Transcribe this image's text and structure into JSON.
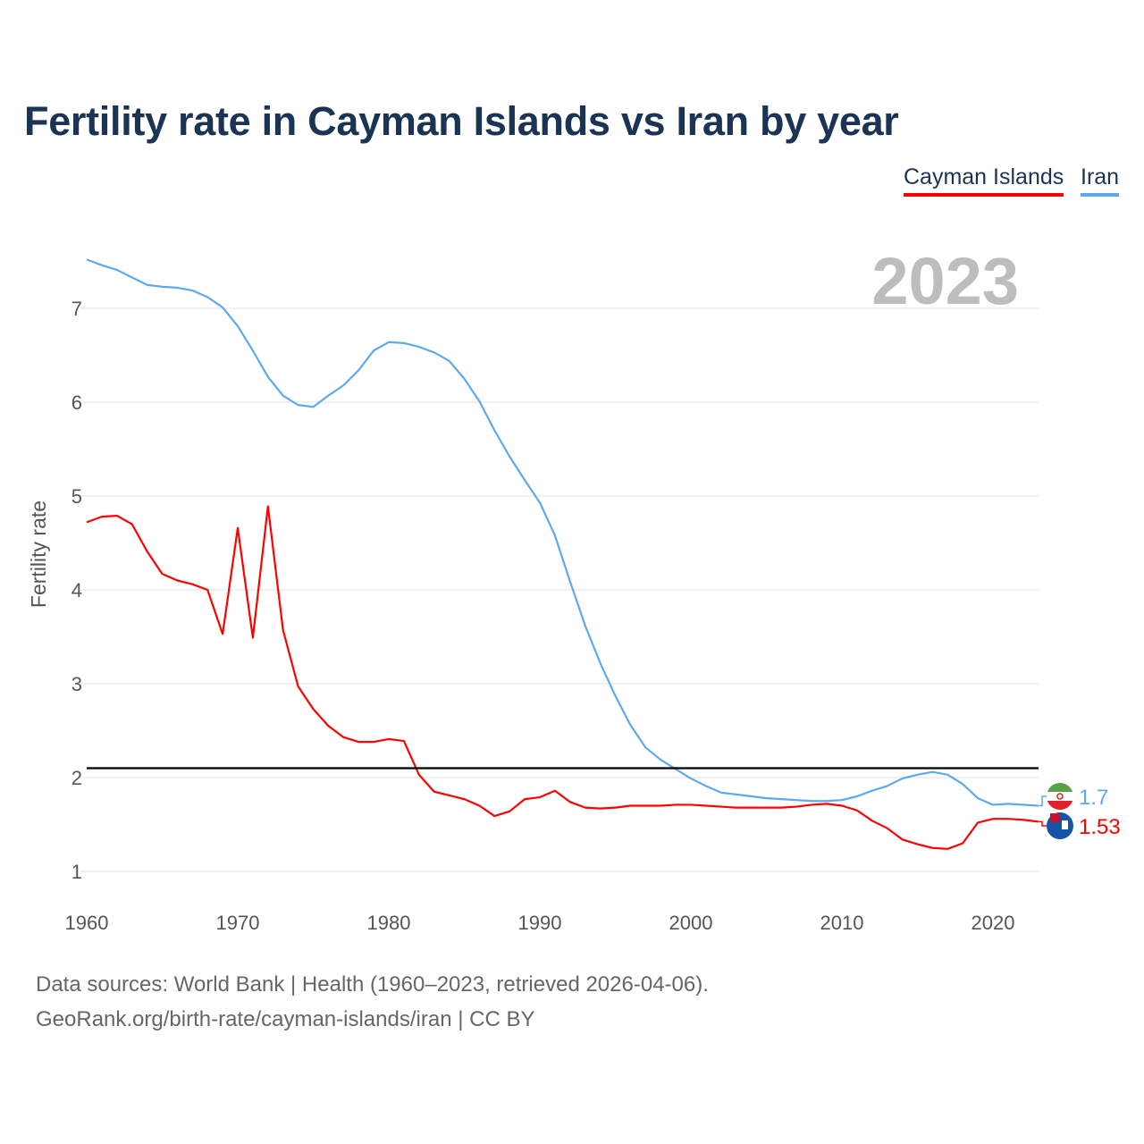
{
  "title": "Fertility rate in Cayman Islands vs Iran by year",
  "legend": [
    {
      "label": "Cayman Islands",
      "color": "#ff0000"
    },
    {
      "label": "Iran",
      "color": "#5ea8ee"
    }
  ],
  "year_watermark": "2023",
  "footer": {
    "line1": "Data sources: World Bank | Health (1960–2023, retrieved 2026-04-06).",
    "line2": "GeoRank.org/birth-rate/cayman-islands/iran | CC BY"
  },
  "chart_data": {
    "type": "line",
    "title": "Fertility rate in Cayman Islands vs Iran by year",
    "xlabel": "",
    "ylabel": "Fertility rate",
    "xlim": [
      1960,
      2023
    ],
    "ylim": [
      1,
      7.6
    ],
    "x_ticks": [
      1960,
      1970,
      1980,
      1990,
      2000,
      2010,
      2020
    ],
    "y_ticks": [
      1,
      2,
      3,
      4,
      5,
      6,
      7
    ],
    "grid": true,
    "legend_position": "top-right",
    "reference_line": {
      "y": 2.1,
      "color": "#000000"
    },
    "x": [
      1960,
      1961,
      1962,
      1963,
      1964,
      1965,
      1966,
      1967,
      1968,
      1969,
      1970,
      1971,
      1972,
      1973,
      1974,
      1975,
      1976,
      1977,
      1978,
      1979,
      1980,
      1981,
      1982,
      1983,
      1984,
      1985,
      1986,
      1987,
      1988,
      1989,
      1990,
      1991,
      1992,
      1993,
      1994,
      1995,
      1996,
      1997,
      1998,
      1999,
      2000,
      2001,
      2002,
      2003,
      2004,
      2005,
      2006,
      2007,
      2008,
      2009,
      2010,
      2011,
      2012,
      2013,
      2014,
      2015,
      2016,
      2017,
      2018,
      2019,
      2020,
      2021,
      2022,
      2023
    ],
    "series": [
      {
        "name": "Cayman Islands",
        "color": "#ff0000",
        "end_label": "1.53",
        "values": [
          4.72,
          4.78,
          4.79,
          4.7,
          4.41,
          4.17,
          4.1,
          4.06,
          4.0,
          3.53,
          4.66,
          3.49,
          4.89,
          3.57,
          2.97,
          2.73,
          2.55,
          2.43,
          2.38,
          2.38,
          2.41,
          2.39,
          2.03,
          1.85,
          1.81,
          1.77,
          1.7,
          1.59,
          1.64,
          1.77,
          1.79,
          1.86,
          1.74,
          1.68,
          1.67,
          1.68,
          1.7,
          1.7,
          1.7,
          1.71,
          1.71,
          1.7,
          1.69,
          1.68,
          1.68,
          1.68,
          1.68,
          1.69,
          1.71,
          1.72,
          1.7,
          1.65,
          1.54,
          1.46,
          1.34,
          1.29,
          1.25,
          1.24,
          1.3,
          1.52,
          1.56,
          1.56,
          1.55,
          1.53
        ]
      },
      {
        "name": "Iran",
        "color": "#5ea8ee",
        "end_label": "1.7",
        "values": [
          7.52,
          7.46,
          7.41,
          7.33,
          7.25,
          7.23,
          7.22,
          7.19,
          7.12,
          7.01,
          6.81,
          6.55,
          6.27,
          6.07,
          5.97,
          5.95,
          6.07,
          6.18,
          6.34,
          6.55,
          6.64,
          6.63,
          6.59,
          6.53,
          6.44,
          6.25,
          6.01,
          5.7,
          5.42,
          5.17,
          4.93,
          4.58,
          4.09,
          3.62,
          3.22,
          2.87,
          2.56,
          2.32,
          2.19,
          2.09,
          1.99,
          1.91,
          1.84,
          1.82,
          1.8,
          1.78,
          1.77,
          1.76,
          1.75,
          1.75,
          1.76,
          1.8,
          1.86,
          1.91,
          1.99,
          2.03,
          2.06,
          2.03,
          1.93,
          1.78,
          1.71,
          1.72,
          1.71,
          1.7
        ]
      }
    ]
  }
}
